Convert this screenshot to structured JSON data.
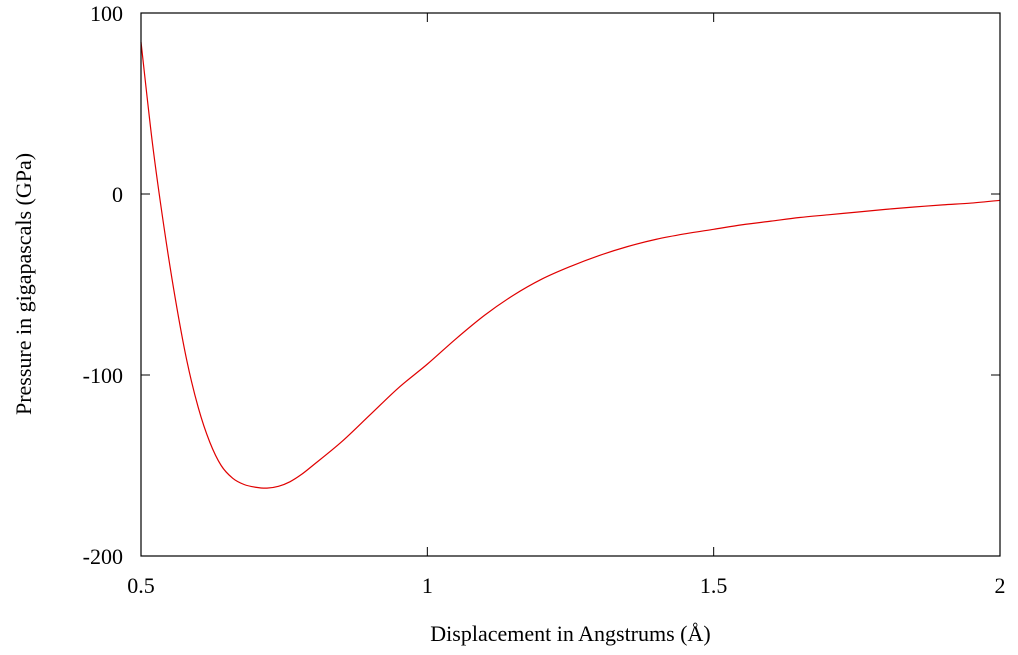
{
  "chart_data": {
    "type": "line",
    "title": "",
    "xlabel": "Displacement in Angstrums (Å)",
    "ylabel": "Pressure in gigapascals (GPa)",
    "xlim": [
      0.5,
      2.0
    ],
    "ylim": [
      -200,
      100
    ],
    "xticks": [
      0.5,
      1.0,
      1.5,
      2.0
    ],
    "xtick_labels": [
      "0.5",
      "1",
      "1.5",
      "2"
    ],
    "yticks": [
      -200,
      -100,
      0,
      100
    ],
    "ytick_labels": [
      "-200",
      "-100",
      "0",
      "100"
    ],
    "grid": false,
    "legend": "none",
    "series": [
      {
        "color": "#e00000",
        "x": [
          0.5,
          0.52,
          0.54,
          0.56,
          0.58,
          0.6,
          0.62,
          0.64,
          0.66,
          0.68,
          0.7,
          0.72,
          0.74,
          0.76,
          0.78,
          0.8,
          0.85,
          0.9,
          0.95,
          1.0,
          1.05,
          1.1,
          1.15,
          1.2,
          1.25,
          1.3,
          1.35,
          1.4,
          1.45,
          1.5,
          1.55,
          1.6,
          1.65,
          1.7,
          1.75,
          1.8,
          1.85,
          1.9,
          1.95,
          2.0
        ],
        "y": [
          84,
          28,
          -18,
          -58,
          -92,
          -118,
          -137,
          -150,
          -157,
          -160.5,
          -162,
          -162.5,
          -161.5,
          -159,
          -155,
          -150,
          -137,
          -122,
          -107,
          -94,
          -80,
          -67,
          -56,
          -47,
          -40,
          -34,
          -29,
          -25,
          -22,
          -19.5,
          -17,
          -15,
          -13,
          -11.5,
          -10,
          -8.5,
          -7.2,
          -6,
          -5,
          -3.5
        ]
      }
    ]
  }
}
